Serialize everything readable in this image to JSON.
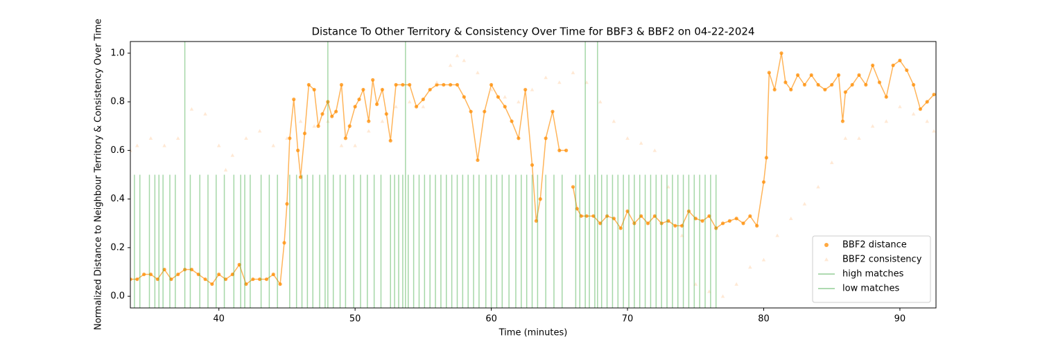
{
  "chart_data": {
    "type": "line",
    "title": "Distance To Other Territory & Consistency Over Time for BBF3 & BBF2 on 04-22-2024",
    "xlabel": "Time (minutes)",
    "ylabel": "Normalized Distance to Neighbour Territory & Consistency Over Time",
    "xlim": [
      33.5,
      92.65
    ],
    "ylim": [
      -0.048,
      1.048
    ],
    "xticks": [
      40,
      50,
      60,
      70,
      80,
      90
    ],
    "yticks": [
      {
        "value": 0,
        "label": "0.0"
      },
      0.2,
      0.4,
      0.6,
      0.8,
      {
        "value": 1,
        "label": "1.0"
      }
    ],
    "legend_loc": "lower right",
    "series": [
      {
        "name": "BBF2 distance",
        "color": "#ff8c00",
        "marker": "circle",
        "x": [
          33.5,
          34,
          34.5,
          35,
          35.5,
          36,
          36.5,
          37,
          37.5,
          38,
          38.5,
          39,
          39.5,
          40,
          40.5,
          41,
          41.5,
          42,
          42.5,
          43,
          43.5,
          44,
          44.5,
          44.8,
          45,
          45.2,
          45.5,
          45.8,
          46,
          46.3,
          46.6,
          47,
          47.3,
          47.6,
          48,
          48.3,
          48.6,
          49,
          49.3,
          49.6,
          50,
          50.3,
          50.6,
          51,
          51.3,
          51.6,
          52,
          52.3,
          52.6,
          53,
          53.5,
          54,
          54.5,
          55,
          55.5,
          56,
          56.5,
          57,
          57.5,
          58,
          58.5,
          59,
          59.5,
          60,
          60.5,
          61,
          61.5,
          62,
          62.5,
          63,
          63.3,
          63.6,
          64,
          64.5,
          65,
          65.5,
          65.8,
          66,
          66.3,
          66.6,
          67,
          67.5,
          68,
          68.5,
          69,
          69.5,
          70,
          70.5,
          71,
          71.5,
          72,
          72.5,
          73,
          73.5,
          74,
          74.5,
          75,
          75.5,
          76,
          76.5,
          77,
          77.5,
          78,
          78.5,
          79,
          79.5,
          80,
          80.2,
          80.4,
          80.8,
          81.3,
          81.6,
          82,
          82.5,
          83,
          83.5,
          84,
          84.5,
          85,
          85.5,
          85.8,
          86,
          86.5,
          87,
          87.5,
          88,
          88.5,
          89,
          89.5,
          90,
          90.5,
          91,
          91.5,
          92,
          92.5
        ],
        "values": [
          0.07,
          0.07,
          0.09,
          0.09,
          0.07,
          0.11,
          0.07,
          0.09,
          0.11,
          0.11,
          0.09,
          0.07,
          0.05,
          0.09,
          0.07,
          0.09,
          0.13,
          0.05,
          0.07,
          0.07,
          0.07,
          0.09,
          0.05,
          0.22,
          0.38,
          0.65,
          0.81,
          0.6,
          0.49,
          0.67,
          0.87,
          0.85,
          0.7,
          0.75,
          0.8,
          0.74,
          0.76,
          0.87,
          0.65,
          0.7,
          0.78,
          0.81,
          0.85,
          0.72,
          0.89,
          0.79,
          0.85,
          0.75,
          0.64,
          0.87,
          0.87,
          0.87,
          0.78,
          0.81,
          0.85,
          0.87,
          0.87,
          0.87,
          0.87,
          0.82,
          0.76,
          0.56,
          0.76,
          0.87,
          0.82,
          0.78,
          0.72,
          0.65,
          0.85,
          0.54,
          0.31,
          0.4,
          0.65,
          0.76,
          0.6,
          0.6,
          null,
          0.45,
          0.36,
          0.33,
          0.33,
          0.33,
          0.3,
          0.33,
          0.32,
          0.28,
          0.35,
          0.3,
          0.33,
          0.3,
          0.33,
          0.3,
          0.31,
          0.29,
          0.29,
          0.35,
          0.32,
          0.31,
          0.33,
          0.28,
          0.3,
          0.31,
          0.32,
          0.3,
          0.33,
          0.29,
          0.47,
          0.57,
          0.92,
          0.85,
          1.0,
          0.88,
          0.85,
          0.91,
          0.87,
          0.91,
          0.87,
          0.85,
          0.87,
          0.91,
          0.72,
          0.84,
          0.87,
          0.91,
          0.87,
          0.95,
          0.88,
          0.82,
          0.95,
          0.97,
          0.93,
          0.87,
          0.77,
          0.8,
          0.83
        ]
      },
      {
        "name": "BBF2 consistency",
        "color": "#ffdab9",
        "marker": "triangle",
        "x": [
          33.5,
          34,
          35,
          36,
          37,
          38,
          39,
          40,
          40.5,
          41,
          42,
          43,
          44,
          45,
          46,
          47,
          48,
          49,
          50,
          51,
          52,
          53,
          54,
          55,
          56,
          57,
          57.5,
          58,
          59,
          60,
          61,
          62,
          63,
          64,
          65,
          66,
          67,
          68,
          69,
          70,
          71,
          72,
          73,
          74,
          75,
          76,
          77,
          78,
          79,
          80,
          81,
          82,
          83,
          84,
          85,
          86,
          87,
          88,
          89,
          90,
          91,
          92,
          92.5
        ],
        "values": [
          0.6,
          0.62,
          0.65,
          0.62,
          0.65,
          0.77,
          0.75,
          0.62,
          0.52,
          0.58,
          0.65,
          0.68,
          0.62,
          0.65,
          0.72,
          0.7,
          0.72,
          0.62,
          0.62,
          0.68,
          0.72,
          0.78,
          0.8,
          0.78,
          0.88,
          0.95,
          0.99,
          0.97,
          0.92,
          0.85,
          0.82,
          0.8,
          0.85,
          0.9,
          0.88,
          0.92,
          0.88,
          0.8,
          0.72,
          0.65,
          0.63,
          0.6,
          0.45,
          0.25,
          0.05,
          0.02,
          0.0,
          0.05,
          0.12,
          0.15,
          0.25,
          0.32,
          0.38,
          0.45,
          0.55,
          0.65,
          0.65,
          0.7,
          0.72,
          0.78,
          0.75,
          0.72,
          0.68
        ]
      },
      {
        "name": "high matches",
        "color": "#4caf50",
        "marker": "vline",
        "x": [
          37.5,
          48,
          53.7,
          66.9,
          67.8
        ]
      },
      {
        "name": "low matches",
        "color": "#4caf50",
        "marker": "vline",
        "y_top": 0.5,
        "x": [
          33.8,
          34.2,
          34.9,
          35.3,
          35.6,
          35.9,
          36.4,
          36.8,
          37.9,
          38.6,
          39.2,
          39.8,
          40.4,
          41.1,
          41.6,
          41.9,
          42.3,
          43.1,
          43.7,
          44.3,
          45.2,
          45.7,
          46.1,
          46.5,
          46.9,
          47.4,
          47.8,
          48.4,
          48.9,
          49.3,
          49.9,
          50.4,
          50.9,
          51.4,
          51.9,
          52.6,
          52.9,
          53.2,
          53.5,
          53.9,
          54.3,
          54.7,
          55.1,
          55.5,
          55.9,
          56.3,
          56.7,
          57.1,
          57.5,
          57.9,
          58.3,
          58.7,
          59.1,
          59.6,
          60.0,
          60.4,
          60.8,
          61.3,
          61.8,
          62.2,
          62.6,
          63.0,
          63.4,
          64.0,
          64.6,
          65.2,
          66.2,
          66.5,
          67.2,
          67.6,
          68.1,
          68.5,
          68.9,
          69.3,
          69.7,
          70.1,
          70.5,
          70.9,
          71.3,
          71.7,
          72.1,
          72.5,
          72.9,
          73.3,
          73.7,
          74.1,
          74.5,
          74.9,
          75.3,
          75.7,
          76.1,
          76.5
        ]
      }
    ]
  }
}
